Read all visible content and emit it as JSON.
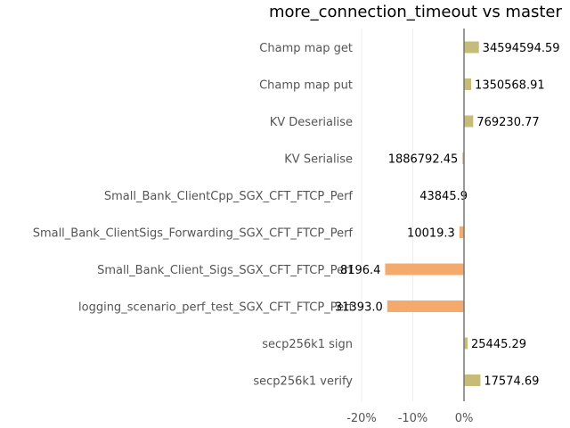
{
  "chart_data": {
    "type": "bar",
    "orientation": "horizontal",
    "title": "more_connection_timeout vs master",
    "xlabel": "",
    "ylabel": "",
    "xlim": [
      -21.5,
      3.5
    ],
    "x_ticks": [
      -20,
      -10,
      0
    ],
    "x_tick_labels": [
      "-20%",
      "-10%",
      "0%"
    ],
    "grid": true,
    "legend": "none",
    "colors": {
      "positive": "#c4bc78",
      "negative": "#f4aa6c",
      "zero_line": "#777777"
    },
    "categories": [
      "Champ map get",
      "Champ map put",
      "KV Deserialise",
      "KV Serialise",
      "Small_Bank_ClientCpp_SGX_CFT_FTCP_Perf",
      "Small_Bank_ClientSigs_Forwarding_SGX_CFT_FTCP_Perf",
      "Small_Bank_Client_Sigs_SGX_CFT_FTCP_Perf",
      "logging_scenario_perf_test_SGX_CFT_FTCP_Perf",
      "secp256k1 sign",
      "secp256k1 verify"
    ],
    "values": [
      2.9,
      1.4,
      1.8,
      -0.3,
      0.0,
      -0.9,
      -15.4,
      -15.0,
      0.7,
      3.2
    ],
    "value_labels": [
      "34594594.59",
      "1350568.91",
      "769230.77",
      "1886792.45",
      "43845.9",
      "10019.3",
      "8196.4",
      "31393.0",
      "25445.29",
      "17574.69"
    ]
  }
}
